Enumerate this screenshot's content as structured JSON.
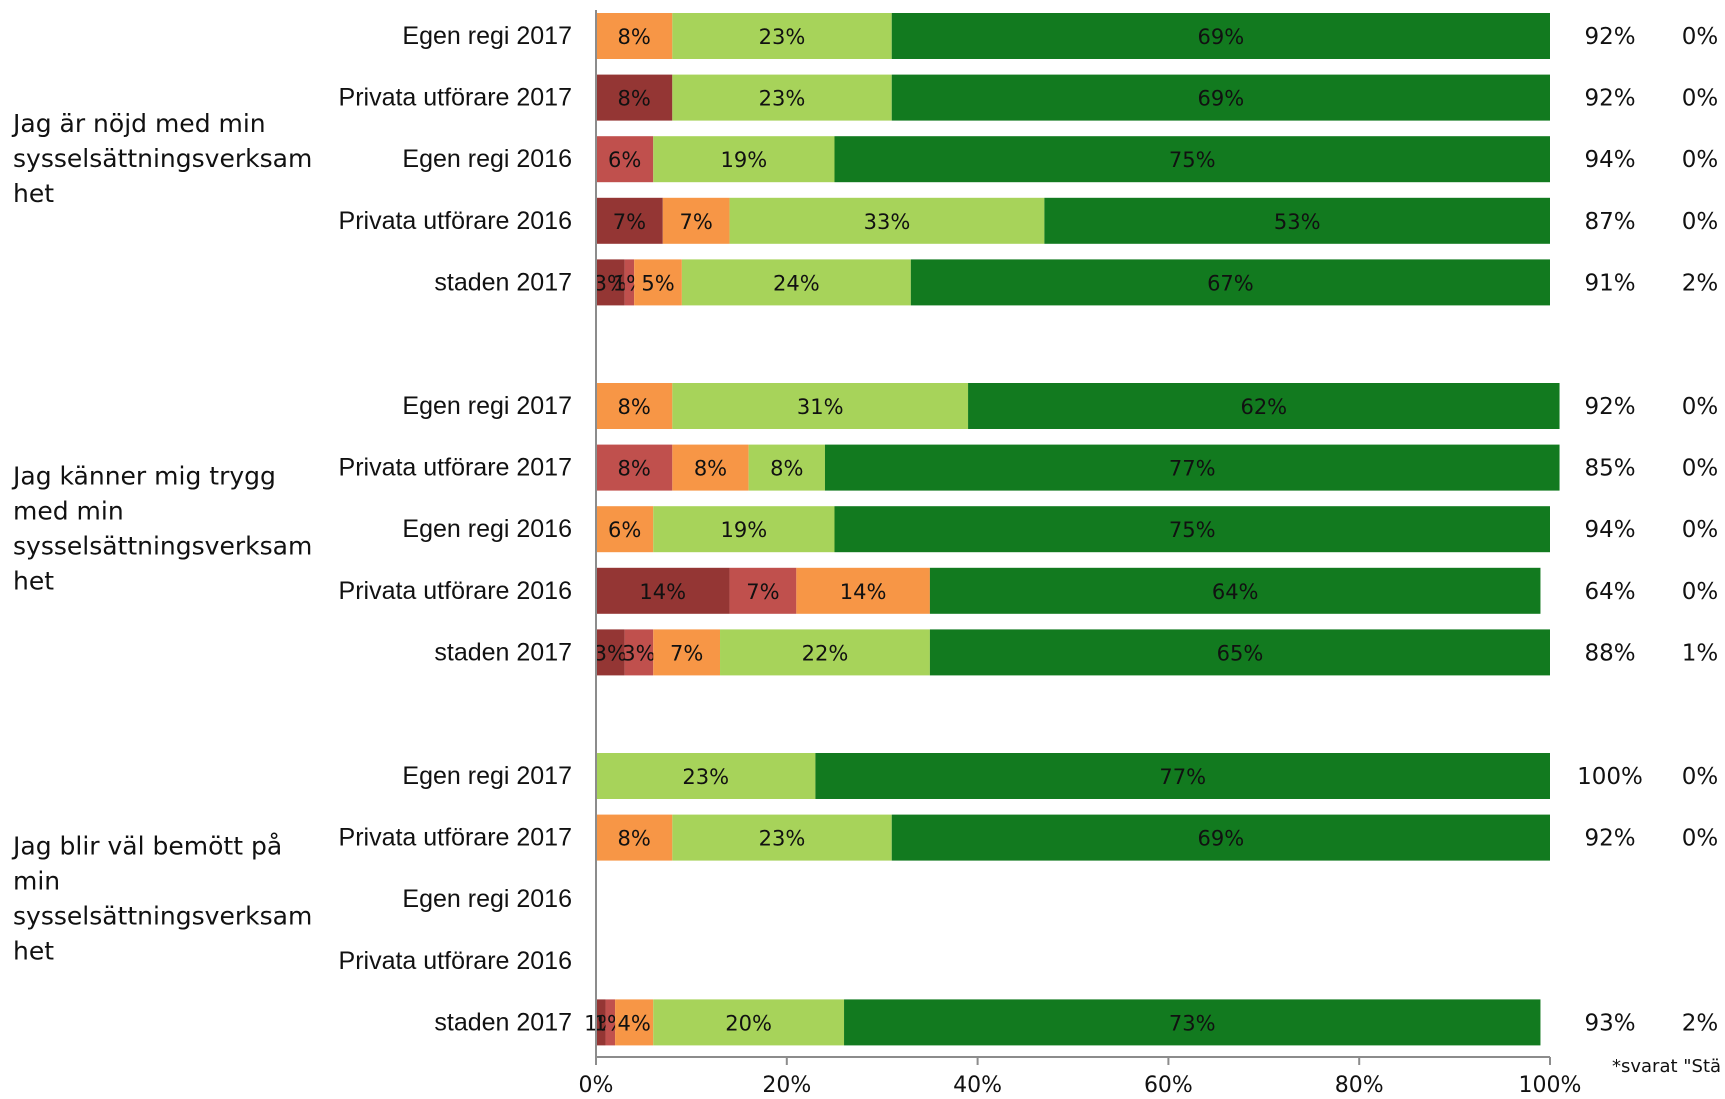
{
  "chart_data": {
    "type": "bar",
    "orientation": "horizontal",
    "stacked": true,
    "xlim": [
      0,
      100
    ],
    "x_ticks": [
      "0%",
      "20%",
      "40%",
      "60%",
      "80%",
      "100%"
    ],
    "segment_colors": [
      "#943634",
      "#c0504d",
      "#f79646",
      "#a7d35a",
      "#127a1f"
    ],
    "questions": [
      {
        "label": "Jag är nöjd med min sysselsättningsverksamhet",
        "rows": [
          {
            "label": "Egen regi 2017",
            "values": [
              0,
              0,
              8,
              23,
              69
            ],
            "segment_labels": [
              "",
              "",
              "8%",
              "23%",
              "69%"
            ],
            "positive": "92%",
            "negative": "0%"
          },
          {
            "label": "Privata utförare 2017",
            "values": [
              8,
              0,
              0,
              23,
              69
            ],
            "segment_labels": [
              "8%",
              "",
              "",
              "23%",
              "69%"
            ],
            "positive": "92%",
            "negative": "0%"
          },
          {
            "label": "Egen regi 2016",
            "values": [
              0,
              6,
              0,
              19,
              75
            ],
            "segment_labels": [
              "",
              "6%",
              "",
              "19%",
              "75%"
            ],
            "positive": "94%",
            "negative": "0%"
          },
          {
            "label": "Privata utförare 2016",
            "values": [
              7,
              0,
              7,
              33,
              53
            ],
            "segment_labels": [
              "7%",
              "",
              "7%",
              "33%",
              "53%"
            ],
            "positive": "87%",
            "negative": "0%"
          },
          {
            "label": "staden 2017",
            "values": [
              3,
              1,
              5,
              24,
              67
            ],
            "segment_labels": [
              "3%",
              "1%",
              "5%",
              "24%",
              "67%"
            ],
            "positive": "91%",
            "negative": "2%"
          }
        ]
      },
      {
        "label": "Jag känner mig trygg med min sysselsättningsverksamhet",
        "rows": [
          {
            "label": "Egen regi 2017",
            "values": [
              0,
              0,
              8,
              31,
              62
            ],
            "segment_labels": [
              "",
              "",
              "8%",
              "31%",
              "62%"
            ],
            "positive": "92%",
            "negative": "0%"
          },
          {
            "label": "Privata utförare 2017",
            "values": [
              0,
              8,
              8,
              8,
              77
            ],
            "segment_labels": [
              "",
              "8%",
              "8%",
              "8%",
              "77%"
            ],
            "positive": "85%",
            "negative": "0%"
          },
          {
            "label": "Egen regi 2016",
            "values": [
              0,
              0,
              6,
              19,
              75
            ],
            "segment_labels": [
              "",
              "",
              "6%",
              "19%",
              "75%"
            ],
            "positive": "94%",
            "negative": "0%"
          },
          {
            "label": "Privata utförare 2016",
            "values": [
              14,
              7,
              14,
              0,
              64
            ],
            "segment_labels": [
              "14%",
              "7%",
              "14%",
              "",
              "64%"
            ],
            "positive": "64%",
            "negative": "0%"
          },
          {
            "label": "staden 2017",
            "values": [
              3,
              3,
              7,
              22,
              65
            ],
            "segment_labels": [
              "3%",
              "3%",
              "7%",
              "22%",
              "65%"
            ],
            "positive": "88%",
            "negative": "1%"
          }
        ]
      },
      {
        "label": "Jag blir väl bemött på min sysselsättningsverksamhet",
        "rows": [
          {
            "label": "Egen regi 2017",
            "values": [
              0,
              0,
              0,
              23,
              77
            ],
            "segment_labels": [
              "",
              "",
              "",
              "23%",
              "77%"
            ],
            "positive": "100%",
            "negative": "0%"
          },
          {
            "label": "Privata utförare 2017",
            "values": [
              0,
              0,
              8,
              23,
              69
            ],
            "segment_labels": [
              "",
              "",
              "8%",
              "23%",
              "69%"
            ],
            "positive": "92%",
            "negative": "0%"
          },
          {
            "label": "Egen regi 2016",
            "values": [],
            "segment_labels": [],
            "positive": "",
            "negative": ""
          },
          {
            "label": "Privata utförare 2016",
            "values": [],
            "segment_labels": [],
            "positive": "",
            "negative": ""
          },
          {
            "label": "staden 2017",
            "values": [
              1,
              1,
              4,
              20,
              73
            ],
            "segment_labels": [
              "1%",
              "1%",
              "4%",
              "20%",
              "73%"
            ],
            "positive": "93%",
            "negative": "2%"
          }
        ]
      }
    ],
    "footnote": "*svarat \"Stä ganska bra\""
  }
}
